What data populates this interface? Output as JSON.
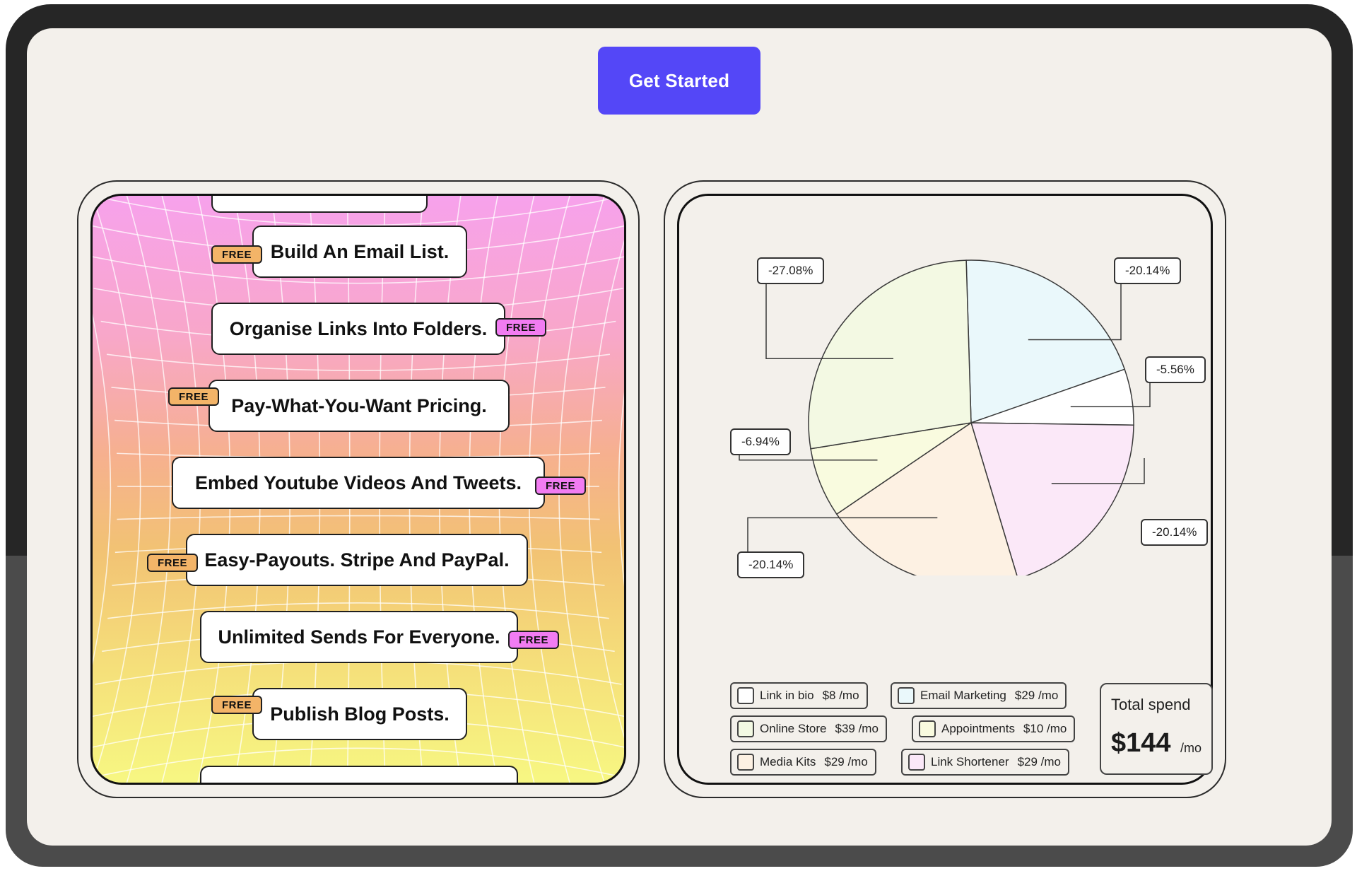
{
  "cta": {
    "label": "Get Started",
    "color": "#5447f7"
  },
  "features": [
    {
      "label": "Build An Email List.",
      "badge": "FREE",
      "badge_color": "#f3b468"
    },
    {
      "label": "Organise Links Into Folders.",
      "badge": "FREE",
      "badge_color": "#f27cf2"
    },
    {
      "label": "Pay-What-You-Want Pricing.",
      "badge": "FREE",
      "badge_color": "#f3b468"
    },
    {
      "label": "Embed Youtube Videos And Tweets.",
      "badge": "FREE",
      "badge_color": "#f27cf2"
    },
    {
      "label": "Easy-Payouts. Stripe And PayPal.",
      "badge": "FREE",
      "badge_color": "#f3b468"
    },
    {
      "label": "Unlimited Sends For Everyone.",
      "badge": "FREE",
      "badge_color": "#f27cf2"
    },
    {
      "label": "Publish Blog Posts.",
      "badge": "FREE",
      "badge_color": "#f3b468"
    }
  ],
  "chart_data": {
    "type": "pie",
    "slices": [
      {
        "label": "-20.14%",
        "value": 20.14,
        "color": "#eaf8fb"
      },
      {
        "label": "-5.56%",
        "value": 5.56,
        "color": "#ffffff"
      },
      {
        "label": "-20.14%",
        "value": 20.14,
        "color": "#fbe8f8"
      },
      {
        "label": "-20.14%",
        "value": 20.14,
        "color": "#fdf1e3"
      },
      {
        "label": "-6.94%",
        "value": 6.94,
        "color": "#f9fbdf"
      },
      {
        "label": "-27.08%",
        "value": 27.08,
        "color": "#f3f9e3"
      }
    ]
  },
  "legend": [
    {
      "name": "Link in bio",
      "price": "$8 /mo",
      "color": "#ffffff"
    },
    {
      "name": "Email Marketing",
      "price": "$29 /mo",
      "color": "#eaf8fb"
    },
    {
      "name": "Online Store",
      "price": "$39 /mo",
      "color": "#f3f9e3"
    },
    {
      "name": "Appointments",
      "price": "$10 /mo",
      "color": "#f9fbdf"
    },
    {
      "name": "Media Kits",
      "price": "$29 /mo",
      "color": "#fdf1e3"
    },
    {
      "name": "Link Shortener",
      "price": "$29 /mo",
      "color": "#fbe8f8"
    }
  ],
  "total": {
    "label": "Total spend",
    "amount": "$144",
    "unit": "/mo"
  }
}
